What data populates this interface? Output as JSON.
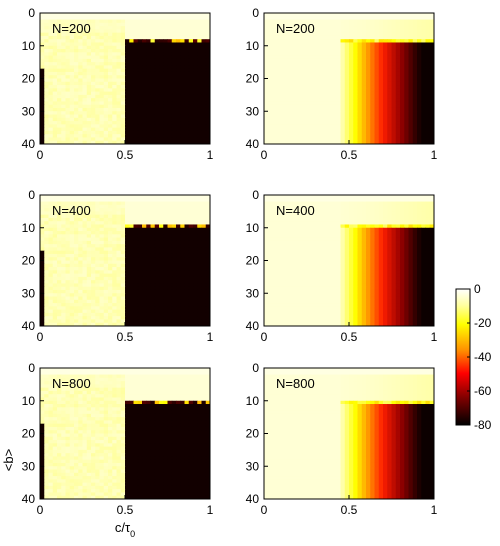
{
  "chart_data": [
    {
      "type": "heatmap",
      "label": "N=200",
      "variant": "left",
      "x_ticks": [
        "0",
        "0.5",
        "1"
      ],
      "y_ticks": [
        "0",
        "10",
        "20",
        "30",
        "40"
      ],
      "xlim": [
        0,
        1
      ],
      "ylim": [
        0,
        40
      ],
      "y_reversed": true,
      "top_band_row": 9
    },
    {
      "type": "heatmap",
      "label": "N=200",
      "variant": "right",
      "x_ticks": [
        "0",
        "0.5",
        "1"
      ],
      "y_ticks": [
        "0",
        "10",
        "20",
        "30",
        "40"
      ],
      "xlim": [
        0,
        1
      ],
      "ylim": [
        0,
        40
      ],
      "y_reversed": true,
      "top_band_row": 9
    },
    {
      "type": "heatmap",
      "label": "N=400",
      "variant": "left",
      "x_ticks": [
        "0",
        "0.5",
        "1"
      ],
      "y_ticks": [
        "0",
        "10",
        "20",
        "30",
        "40"
      ],
      "xlim": [
        0,
        1
      ],
      "ylim": [
        0,
        40
      ],
      "y_reversed": true,
      "top_band_row": 10
    },
    {
      "type": "heatmap",
      "label": "N=400",
      "variant": "right",
      "x_ticks": [
        "0",
        "0.5",
        "1"
      ],
      "y_ticks": [
        "0",
        "10",
        "20",
        "30",
        "40"
      ],
      "xlim": [
        0,
        1
      ],
      "ylim": [
        0,
        40
      ],
      "y_reversed": true,
      "top_band_row": 10
    },
    {
      "type": "heatmap",
      "label": "N=800",
      "variant": "left",
      "x_ticks": [
        "0",
        "0.5",
        "1"
      ],
      "y_ticks": [
        "0",
        "10",
        "20",
        "30",
        "40"
      ],
      "xlim": [
        0,
        1
      ],
      "ylim": [
        0,
        40
      ],
      "y_reversed": true,
      "top_band_row": 11
    },
    {
      "type": "heatmap",
      "label": "N=800",
      "variant": "right",
      "x_ticks": [
        "0",
        "0.5",
        "1"
      ],
      "y_ticks": [
        "0",
        "10",
        "20",
        "30",
        "40"
      ],
      "xlim": [
        0,
        1
      ],
      "ylim": [
        0,
        40
      ],
      "y_reversed": true,
      "top_band_row": 11
    }
  ],
  "axes": {
    "xlabel": "c/τ",
    "xlabel_sub": "0",
    "ylabel": "<b>"
  },
  "colorbar": {
    "ticks": [
      "0",
      "-20",
      "-40",
      "-60",
      "-80"
    ],
    "range": [
      -80,
      0
    ],
    "colormap": "hot"
  }
}
